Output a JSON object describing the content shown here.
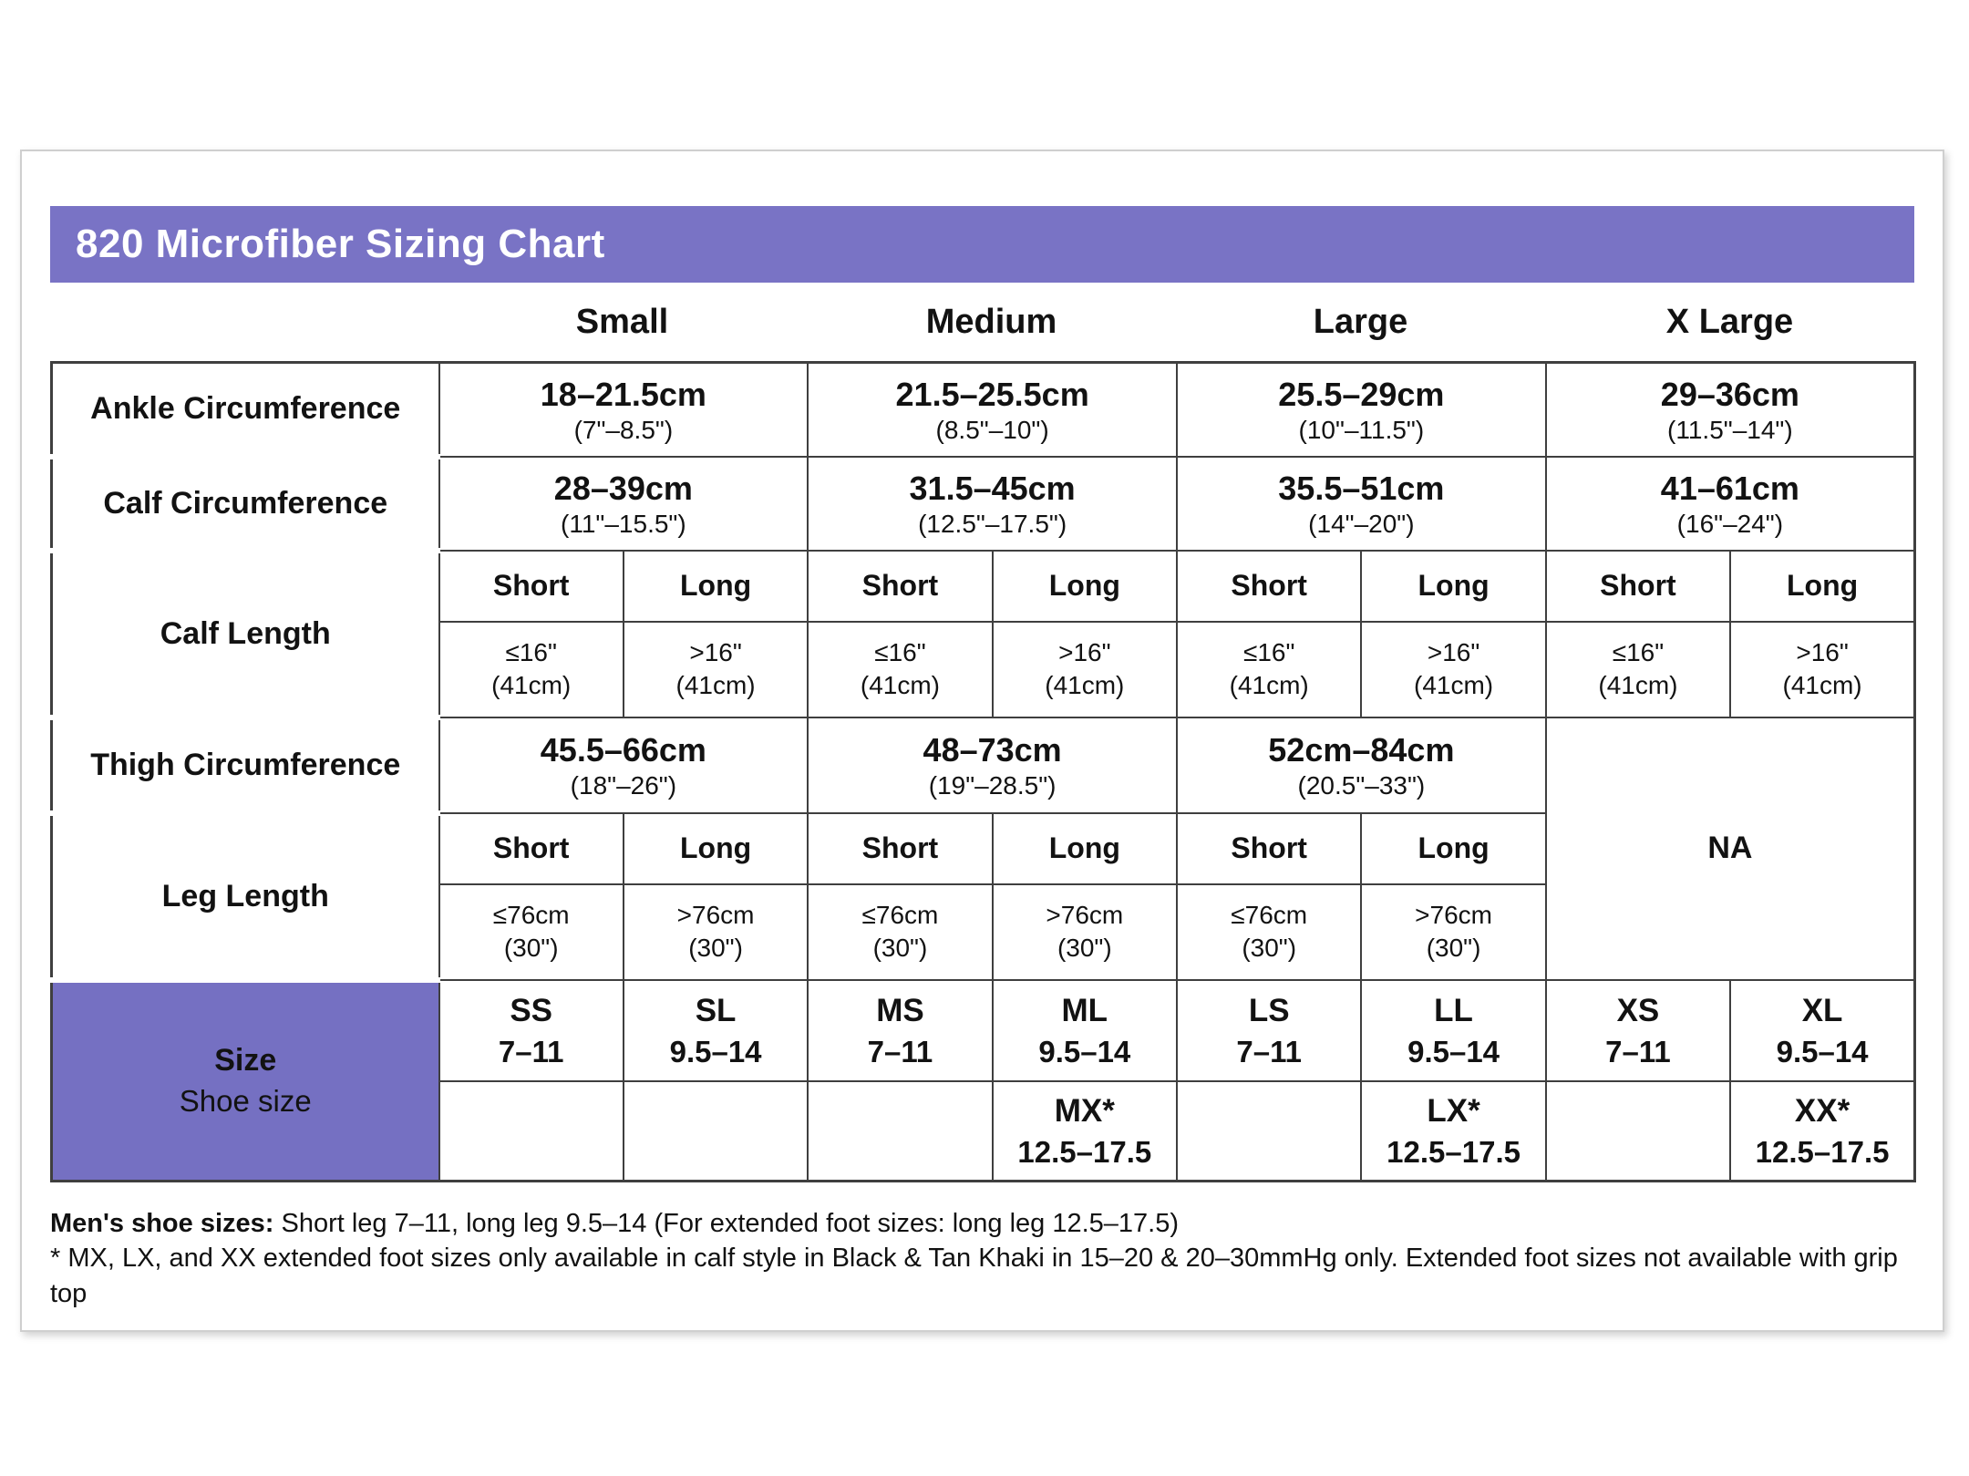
{
  "title": "820 Microfiber Sizing Chart",
  "colors": {
    "title_bar": "#7973c5",
    "row_label": "#8b86cb",
    "size_cell": "#7570c2",
    "short_long_header": "#e9e8f6",
    "table_border": "#3f3f3f",
    "card_border": "#cfcfcf"
  },
  "size_headers": [
    "Small",
    "Medium",
    "Large",
    "X Large"
  ],
  "ankle": {
    "label": "Ankle Circumference",
    "cells": [
      {
        "cm": "18–21.5cm",
        "in": "(7\"–8.5\")"
      },
      {
        "cm": "21.5–25.5cm",
        "in": "(8.5\"–10\")"
      },
      {
        "cm": "25.5–29cm",
        "in": "(10\"–11.5\")"
      },
      {
        "cm": "29–36cm",
        "in": "(11.5\"–14\")"
      }
    ]
  },
  "calf": {
    "label": "Calf Circumference",
    "cells": [
      {
        "cm": "28–39cm",
        "in": "(11\"–15.5\")"
      },
      {
        "cm": "31.5–45cm",
        "in": "(12.5\"–17.5\")"
      },
      {
        "cm": "35.5–51cm",
        "in": "(14\"–20\")"
      },
      {
        "cm": "41–61cm",
        "in": "(16\"–24\")"
      }
    ]
  },
  "calf_length": {
    "label": "Calf Length",
    "headers": [
      "Short",
      "Long",
      "Short",
      "Long",
      "Short",
      "Long",
      "Short",
      "Long"
    ],
    "values": [
      {
        "v": "≤16\"",
        "s": "(41cm)"
      },
      {
        "v": ">16\"",
        "s": "(41cm)"
      },
      {
        "v": "≤16\"",
        "s": "(41cm)"
      },
      {
        "v": ">16\"",
        "s": "(41cm)"
      },
      {
        "v": "≤16\"",
        "s": "(41cm)"
      },
      {
        "v": ">16\"",
        "s": "(41cm)"
      },
      {
        "v": "≤16\"",
        "s": "(41cm)"
      },
      {
        "v": ">16\"",
        "s": "(41cm)"
      }
    ]
  },
  "thigh": {
    "label": "Thigh Circumference",
    "cells": [
      {
        "cm": "45.5–66cm",
        "in": "(18\"–26\")"
      },
      {
        "cm": "48–73cm",
        "in": "(19\"–28.5\")"
      },
      {
        "cm": "52cm–84cm",
        "in": "(20.5\"–33\")"
      }
    ],
    "na": "NA"
  },
  "leg_length": {
    "label": "Leg Length",
    "headers": [
      "Short",
      "Long",
      "Short",
      "Long",
      "Short",
      "Long"
    ],
    "values": [
      {
        "v": "≤76cm",
        "s": "(30\")"
      },
      {
        "v": ">76cm",
        "s": "(30\")"
      },
      {
        "v": "≤76cm",
        "s": "(30\")"
      },
      {
        "v": ">76cm",
        "s": "(30\")"
      },
      {
        "v": "≤76cm",
        "s": "(30\")"
      },
      {
        "v": ">76cm",
        "s": "(30\")"
      }
    ]
  },
  "size": {
    "label": "Size",
    "sublabel": "Shoe size",
    "row1": [
      {
        "code": "SS",
        "range": "7–11"
      },
      {
        "code": "SL",
        "range": "9.5–14"
      },
      {
        "code": "MS",
        "range": "7–11"
      },
      {
        "code": "ML",
        "range": "9.5–14"
      },
      {
        "code": "LS",
        "range": "7–11"
      },
      {
        "code": "LL",
        "range": "9.5–14"
      },
      {
        "code": "XS",
        "range": "7–11"
      },
      {
        "code": "XL",
        "range": "9.5–14"
      }
    ],
    "row2": [
      null,
      null,
      null,
      {
        "code": "MX*",
        "range": "12.5–17.5"
      },
      null,
      {
        "code": "LX*",
        "range": "12.5–17.5"
      },
      null,
      {
        "code": "XX*",
        "range": "12.5–17.5"
      }
    ]
  },
  "footnotes": {
    "line1_bold": "Men's shoe sizes:",
    "line1_rest": " Short leg 7–11, long leg 9.5–14 (For extended foot sizes: long leg 12.5–17.5)",
    "line2": "* MX, LX, and XX extended foot sizes only available in calf style in Black & Tan Khaki in 15–20 & 20–30mmHg only. Extended foot sizes not available with grip top"
  }
}
